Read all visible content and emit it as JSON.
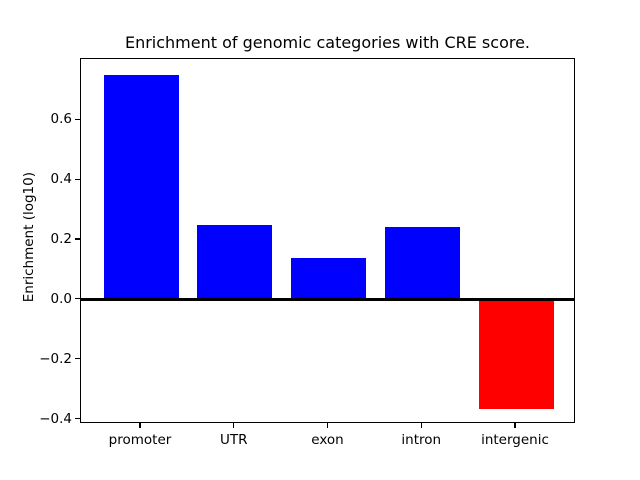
{
  "figure": {
    "background": "#ffffff"
  },
  "chart_data": {
    "type": "bar",
    "title": "Enrichment of genomic categories with CRE score.",
    "ylabel": "Enrichment (log10)",
    "xlabel": "",
    "categories": [
      "promoter",
      "UTR",
      "exon",
      "intron",
      "intergenic"
    ],
    "values": [
      0.75,
      0.25,
      0.14,
      0.245,
      -0.365
    ],
    "bar_colors": [
      "#0000ff",
      "#0000ff",
      "#0000ff",
      "#0000ff",
      "#ff0000"
    ],
    "positive_color": "#0000ff",
    "negative_color": "#ff0000",
    "axis_color": "#000000",
    "yticks": [
      0.6,
      0.4,
      0.2,
      0.0,
      -0.2,
      -0.4
    ],
    "ytick_labels": [
      "0.6",
      "0.4",
      "0.2",
      "0.0",
      "−0.2",
      "−0.4"
    ],
    "ylim": [
      -0.415,
      0.805
    ],
    "bar_width_fraction": 0.8,
    "grid": false,
    "legend": false,
    "zero_line": true
  }
}
